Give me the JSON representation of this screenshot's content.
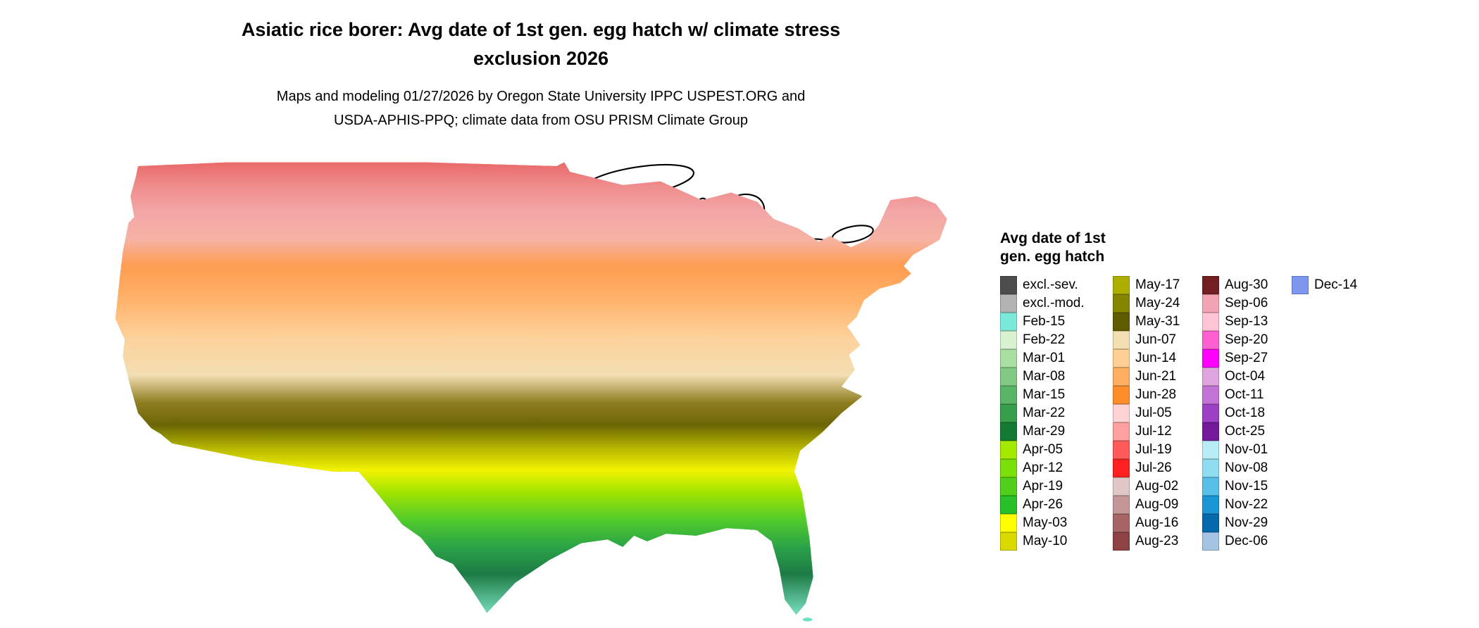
{
  "header": {
    "title": "Asiatic rice borer: Avg date of 1st gen. egg hatch w/ climate stress exclusion 2026",
    "attribution": "Maps and modeling 01/27/2026 by Oregon State University IPPC USPEST.ORG and USDA-APHIS-PPQ; climate data from OSU PRISM Climate Group"
  },
  "legend": {
    "title": "Avg date of 1st gen. egg hatch",
    "columns": [
      {
        "entries": [
          {
            "label": "excl.-sev.",
            "color": "#4d4d4d"
          },
          {
            "label": "excl.-mod.",
            "color": "#b3b3b3"
          },
          {
            "label": "Feb-15",
            "color": "#7be9d9"
          },
          {
            "label": "Feb-22",
            "color": "#d8f2d0"
          },
          {
            "label": "Mar-01",
            "color": "#aadfa4"
          },
          {
            "label": "Mar-08",
            "color": "#82ca84"
          },
          {
            "label": "Mar-15",
            "color": "#5bb567"
          },
          {
            "label": "Mar-22",
            "color": "#379e4b"
          },
          {
            "label": "Mar-29",
            "color": "#147a33"
          },
          {
            "label": "Apr-05",
            "color": "#a4e900"
          },
          {
            "label": "Apr-12",
            "color": "#7bdf0a"
          },
          {
            "label": "Apr-19",
            "color": "#4fd11c"
          },
          {
            "label": "Apr-26",
            "color": "#28c228"
          },
          {
            "label": "May-03",
            "color": "#ffff00"
          },
          {
            "label": "May-10",
            "color": "#d9d900"
          }
        ]
      },
      {
        "entries": [
          {
            "label": "May-17",
            "color": "#aeae00"
          },
          {
            "label": "May-24",
            "color": "#868600"
          },
          {
            "label": "May-31",
            "color": "#5f5b00"
          },
          {
            "label": "Jun-07",
            "color": "#f3dfb1"
          },
          {
            "label": "Jun-14",
            "color": "#ffd094"
          },
          {
            "label": "Jun-21",
            "color": "#ffaf60"
          },
          {
            "label": "Jun-28",
            "color": "#ff8d2a"
          },
          {
            "label": "Jul-05",
            "color": "#ffd3d3"
          },
          {
            "label": "Jul-12",
            "color": "#ff9f9f"
          },
          {
            "label": "Jul-19",
            "color": "#ff5b5b"
          },
          {
            "label": "Jul-26",
            "color": "#ff2020"
          },
          {
            "label": "Aug-02",
            "color": "#e1c7c7"
          },
          {
            "label": "Aug-09",
            "color": "#c59696"
          },
          {
            "label": "Aug-16",
            "color": "#a76464"
          },
          {
            "label": "Aug-23",
            "color": "#8d4343"
          }
        ]
      },
      {
        "entries": [
          {
            "label": "Aug-30",
            "color": "#741f1f"
          },
          {
            "label": "Sep-06",
            "color": "#f3a4b4"
          },
          {
            "label": "Sep-13",
            "color": "#ffc5d5"
          },
          {
            "label": "Sep-20",
            "color": "#ff60d1"
          },
          {
            "label": "Sep-27",
            "color": "#ff00ff"
          },
          {
            "label": "Oct-04",
            "color": "#dea5de"
          },
          {
            "label": "Oct-11",
            "color": "#c373d5"
          },
          {
            "label": "Oct-18",
            "color": "#9c40c5"
          },
          {
            "label": "Oct-25",
            "color": "#73199c"
          },
          {
            "label": "Nov-01",
            "color": "#b9edf5"
          },
          {
            "label": "Nov-08",
            "color": "#8fddf1"
          },
          {
            "label": "Nov-15",
            "color": "#56c0e9"
          },
          {
            "label": "Nov-22",
            "color": "#1896d5"
          },
          {
            "label": "Nov-29",
            "color": "#0668ad"
          },
          {
            "label": "Dec-06",
            "color": "#a5c3e3"
          }
        ]
      },
      {
        "entries": [
          {
            "label": "Dec-14",
            "color": "#7c97ed"
          }
        ]
      }
    ]
  },
  "map": {
    "band_stops": [
      {
        "o": 0.0,
        "c": "#e96a6a"
      },
      {
        "o": 0.05,
        "c": "#f08b8b"
      },
      {
        "o": 0.11,
        "c": "#f3a6a6"
      },
      {
        "o": 0.17,
        "c": "#f6b3a4"
      },
      {
        "o": 0.23,
        "c": "#ff9d50"
      },
      {
        "o": 0.31,
        "c": "#ffb56e"
      },
      {
        "o": 0.39,
        "c": "#fdd29c"
      },
      {
        "o": 0.47,
        "c": "#f2deb2"
      },
      {
        "o": 0.53,
        "c": "#8f7e22"
      },
      {
        "o": 0.58,
        "c": "#6b6506"
      },
      {
        "o": 0.63,
        "c": "#b4b400"
      },
      {
        "o": 0.68,
        "c": "#f2f200"
      },
      {
        "o": 0.73,
        "c": "#9fe400"
      },
      {
        "o": 0.79,
        "c": "#52cc2a"
      },
      {
        "o": 0.85,
        "c": "#2aa348"
      },
      {
        "o": 0.91,
        "c": "#1d7b45"
      },
      {
        "o": 1.0,
        "c": "#7adfc0"
      }
    ]
  }
}
